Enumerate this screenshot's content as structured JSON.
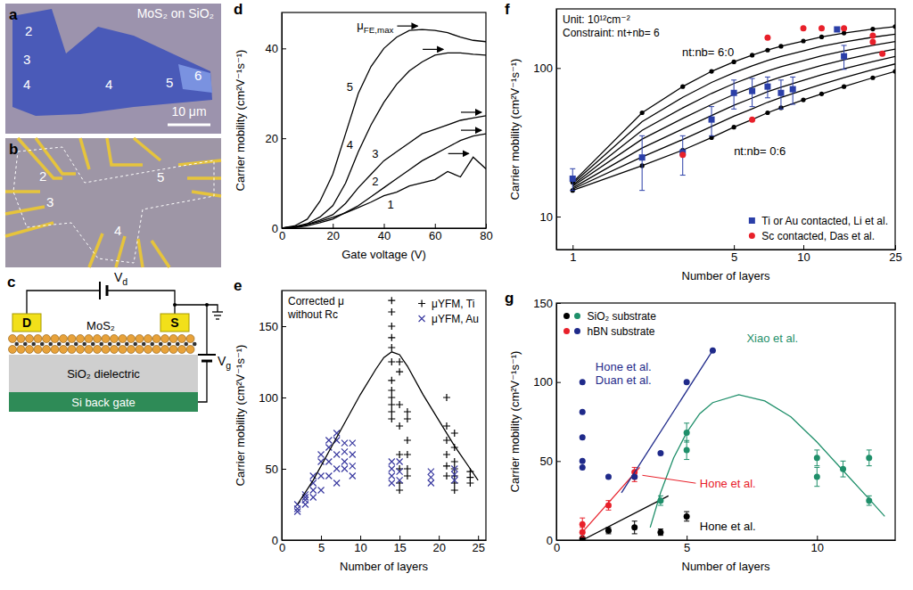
{
  "images": [
    {
      "panel": "a",
      "title": "MoS₂ on SiO₂",
      "labels": [
        "2",
        "3",
        "4",
        "4",
        "5",
        "6"
      ],
      "scale_bar": "10 μm"
    },
    {
      "panel": "b",
      "labels": [
        "2",
        "3",
        "5",
        "4"
      ]
    }
  ],
  "diagram": {
    "panel": "c",
    "drain": "D",
    "source": "S",
    "drain_voltage": {
      "base": "V",
      "sub": "d"
    },
    "layer": "MoS₂",
    "dielectric": "SiO₂ dielectric",
    "gate": "Si back gate",
    "gate_voltage": {
      "base": "V",
      "sub": "g"
    }
  },
  "chart_data": [
    {
      "panel": "d",
      "type": "line",
      "x_label": "Gate voltage (V)",
      "y_label": "Carrier mobility (cm²V⁻¹s⁻¹)",
      "annotation": {
        "base": "μ",
        "sub": "FE,max"
      },
      "x": [
        0,
        5,
        10,
        15,
        20,
        25,
        30,
        35,
        40,
        45,
        50,
        55,
        60,
        65,
        70,
        75,
        80
      ],
      "series": [
        {
          "name": "1",
          "color": "#000000",
          "values": [
            0,
            0.3,
            0.8,
            1.5,
            2.4,
            3.4,
            4.6,
            5.8,
            7.2,
            8.0,
            9.4,
            10.1,
            10.8,
            12.6,
            11.4,
            15.8,
            13.2
          ]
        },
        {
          "name": "2",
          "color": "#000000",
          "values": [
            0,
            0.1,
            0.5,
            1.2,
            2,
            3.5,
            5,
            7,
            9,
            11,
            13,
            15,
            16.5,
            18,
            19.5,
            20.5,
            21
          ]
        },
        {
          "name": "3",
          "color": "#000000",
          "values": [
            0,
            0.2,
            0.8,
            1.8,
            3,
            5.5,
            9,
            12,
            15,
            17,
            19,
            21,
            22,
            23,
            24,
            24.5,
            25
          ]
        },
        {
          "name": "4",
          "color": "#000000",
          "values": [
            0,
            0.3,
            1,
            2.5,
            5,
            10,
            17,
            23,
            28,
            32,
            35,
            37,
            38.5,
            39,
            39,
            38.7,
            38.5
          ]
        },
        {
          "name": "5",
          "color": "#000000",
          "values": [
            0,
            0.5,
            2,
            6,
            12,
            21,
            30,
            36,
            40,
            42.5,
            44,
            44.2,
            44,
            43.5,
            42.5,
            41.8,
            41.5
          ]
        }
      ],
      "xlim": [
        0,
        80
      ],
      "xticks": [
        0,
        20,
        40,
        60,
        80
      ],
      "ylim": [
        0,
        48
      ],
      "yticks": [
        0,
        20,
        40
      ]
    },
    {
      "panel": "e",
      "type": "scatter",
      "x_label": "Number of layers",
      "y_label": "Carrier mobility (cm²V⁻¹s⁻¹)",
      "annotation": [
        "Corrected μ",
        "without Rc"
      ],
      "series": [
        {
          "name": "μYFM, Ti",
          "color": "#000000",
          "marker": "plus",
          "x": [
            14,
            14,
            14,
            14,
            14,
            14,
            14,
            14,
            14,
            14,
            14,
            14,
            15,
            15,
            15,
            15,
            15,
            15,
            15,
            15,
            16,
            16,
            16,
            16,
            16,
            16,
            21,
            21,
            21,
            21,
            21,
            21,
            22,
            22,
            22,
            22,
            22,
            22,
            22,
            24,
            24,
            24
          ],
          "values": [
            168,
            160,
            150,
            142,
            135,
            125,
            112,
            105,
            100,
            95,
            90,
            85,
            125,
            118,
            95,
            80,
            60,
            50,
            40,
            35,
            90,
            85,
            70,
            60,
            50,
            45,
            100,
            80,
            70,
            60,
            52,
            45,
            75,
            65,
            55,
            50,
            45,
            40,
            35,
            48,
            44,
            40
          ]
        },
        {
          "name": "μYFM, Au",
          "color": "#3a3aa0",
          "marker": "cross",
          "x": [
            2,
            2,
            2,
            3,
            3,
            3,
            3,
            4,
            4,
            4,
            4,
            5,
            5,
            5,
            5,
            6,
            6,
            6,
            6,
            7,
            7,
            7,
            7,
            7,
            8,
            8,
            8,
            8,
            9,
            9,
            9,
            9,
            14,
            14,
            14,
            14,
            15,
            15,
            15,
            19,
            19,
            19,
            22,
            22,
            22
          ],
          "values": [
            20,
            22,
            25,
            25,
            28,
            30,
            32,
            30,
            35,
            40,
            45,
            35,
            45,
            55,
            60,
            45,
            55,
            65,
            70,
            40,
            50,
            60,
            70,
            75,
            50,
            55,
            62,
            68,
            45,
            52,
            60,
            68,
            40,
            45,
            50,
            55,
            42,
            48,
            55,
            40,
            44,
            48,
            42,
            46,
            50
          ]
        },
        {
          "type": "line",
          "color": "#000000",
          "x": [
            2,
            4,
            6,
            8,
            10,
            12,
            13,
            14,
            15,
            16,
            18,
            20,
            22,
            24,
            25
          ],
          "values": [
            25,
            42,
            62,
            82,
            102,
            120,
            128,
            132,
            130,
            122,
            102,
            84,
            66,
            50,
            42
          ]
        }
      ],
      "legend": "upper right",
      "xlim": [
        0,
        26
      ],
      "xticks": [
        0,
        5,
        10,
        15,
        20,
        25
      ],
      "ylim": [
        0,
        175
      ],
      "yticks": [
        0,
        50,
        100,
        150
      ]
    },
    {
      "panel": "f",
      "type": "line",
      "x_label": "Number of layers",
      "y_label": "Carrier mobility (cm²V⁻¹s⁻¹)",
      "log": true,
      "annotation": [
        "Unit: 10¹²cm⁻²",
        "Constraint: nt+nb= 6"
      ],
      "x": [
        1,
        2,
        3,
        4,
        5,
        6,
        7,
        8,
        10,
        12,
        15,
        20,
        25
      ],
      "series": [
        {
          "color": "#000000",
          "marker": "circle",
          "annotation": [
            "nt:nb= 6:0"
          ],
          "values": [
            17,
            50,
            75,
            95,
            110,
            122,
            132,
            140,
            152,
            162,
            172,
            183,
            190
          ]
        },
        {
          "color": "#000000",
          "values": [
            16.7,
            43.6,
            63.5,
            80,
            93,
            103.4,
            112.4,
            119.5,
            130.4,
            140.1,
            149.6,
            161.2,
            169
          ]
        },
        {
          "color": "#000000",
          "values": [
            16.3,
            38.1,
            53.9,
            67.5,
            78.6,
            87.6,
            95.6,
            102,
            112,
            120.9,
            130.3,
            142.2,
            150.6
          ]
        },
        {
          "color": "#000000",
          "values": [
            16,
            33.2,
            45.8,
            56.8,
            66.4,
            74.1,
            81.3,
            87,
            96.3,
            104.3,
            113.5,
            125.4,
            134.2
          ]
        },
        {
          "color": "#000000",
          "values": [
            15.6,
            28.9,
            38.9,
            47.9,
            56.1,
            62.8,
            69.2,
            74.2,
            82.7,
            90,
            98.9,
            110.6,
            119.6
          ]
        },
        {
          "color": "#000000",
          "values": [
            15.3,
            25.2,
            33,
            40.4,
            47.4,
            53.1,
            58.8,
            63.3,
            71,
            77.6,
            86.1,
            97.5,
            106.6
          ]
        },
        {
          "color": "#000000",
          "marker": "circle",
          "annotation": [
            "nt:nb= 0:6"
          ],
          "values": [
            15,
            22,
            28,
            34,
            40,
            45,
            50,
            54,
            61,
            67,
            75,
            86,
            95
          ]
        },
        {
          "name": "Ti or Au contacted, Li et al.",
          "type": "scatter",
          "color": "#2b3fa8",
          "marker": "square",
          "x": [
            1,
            2,
            3,
            4,
            5,
            6,
            7,
            8,
            9,
            14,
            15
          ],
          "values": [
            18,
            25,
            27,
            45,
            68,
            70,
            75,
            68,
            72,
            182,
            120
          ],
          "errors": [
            3,
            10,
            8,
            10,
            15,
            15,
            12,
            15,
            15,
            null,
            22
          ]
        },
        {
          "name": "Sc contacted, Das et al.",
          "type": "scatter",
          "color": "#e8202a",
          "marker": "circle",
          "x": [
            3,
            6,
            7,
            10,
            12,
            15,
            20,
            20,
            22
          ],
          "values": [
            26,
            45,
            160,
            185,
            185,
            185,
            150,
            165,
            125
          ]
        }
      ],
      "legend": "lower right",
      "xlim": [
        0.85,
        25
      ],
      "xticks": [
        1,
        5,
        10,
        25
      ],
      "ylim": [
        6,
        250
      ],
      "yticks": [
        10,
        100
      ]
    },
    {
      "panel": "g",
      "type": "scatter",
      "x_label": "Number of layers",
      "y_label": "Carrier mobility (cm²V⁻¹s⁻¹)",
      "series": [
        {
          "name": "SiO₂ substrate",
          "color": "#000000",
          "marker": "circle",
          "annotation": [
            "Hone et al."
          ],
          "x": [
            1,
            2,
            3,
            4,
            5
          ],
          "values": [
            1,
            6,
            8,
            5,
            15
          ],
          "errors": [
            1,
            2,
            4,
            2,
            3
          ]
        },
        {
          "type": "line",
          "color": "#000000",
          "x": [
            1,
            4.3
          ],
          "values": [
            0,
            28
          ]
        },
        {
          "name": "SiO₂ substrate",
          "color": "#1f8f6a",
          "marker": "circle",
          "annotation": [
            "Xiao et al."
          ],
          "x": [
            4,
            5,
            5,
            10,
            10,
            11,
            12,
            12
          ],
          "values": [
            25,
            57,
            68,
            40,
            52,
            45,
            52,
            25
          ],
          "errors": [
            3,
            6,
            6,
            6,
            5,
            5,
            5,
            3
          ]
        },
        {
          "type": "line",
          "color": "#1f8f6a",
          "x": [
            3.6,
            4,
            4.5,
            5,
            5.5,
            6,
            7,
            8,
            9,
            10,
            11,
            12,
            12.6
          ],
          "values": [
            8,
            30,
            52,
            68,
            80,
            87,
            92,
            88,
            78,
            62,
            44,
            26,
            15
          ]
        },
        {
          "name": "hBN substrate",
          "color": "#e8202a",
          "marker": "circle",
          "annotation": [
            "Hone et al."
          ],
          "x": [
            1,
            1,
            2,
            3,
            3
          ],
          "values": [
            5,
            10,
            22,
            40,
            43
          ],
          "errors": [
            3,
            4,
            3,
            3,
            3
          ]
        },
        {
          "type": "line",
          "color": "#e8202a",
          "x": [
            1,
            3.2
          ],
          "values": [
            5,
            46
          ]
        },
        {
          "name": "hBN substrate",
          "color": "#1f2a8a",
          "marker": "circle",
          "annotation": [
            "Hone et al.",
            "Duan et al."
          ],
          "x": [
            1,
            1,
            1,
            1,
            1,
            2,
            3,
            4,
            5,
            6
          ],
          "values": [
            100,
            81,
            65,
            50,
            46,
            40,
            40,
            55,
            100,
            120
          ]
        },
        {
          "type": "line",
          "color": "#1f2a8a",
          "x": [
            2.5,
            6
          ],
          "values": [
            30,
            120
          ]
        }
      ],
      "legend": "upper left",
      "xlim": [
        0,
        13
      ],
      "xticks": [
        0,
        5,
        10
      ],
      "ylim": [
        0,
        150
      ],
      "yticks": [
        0,
        50,
        100,
        150
      ]
    }
  ]
}
